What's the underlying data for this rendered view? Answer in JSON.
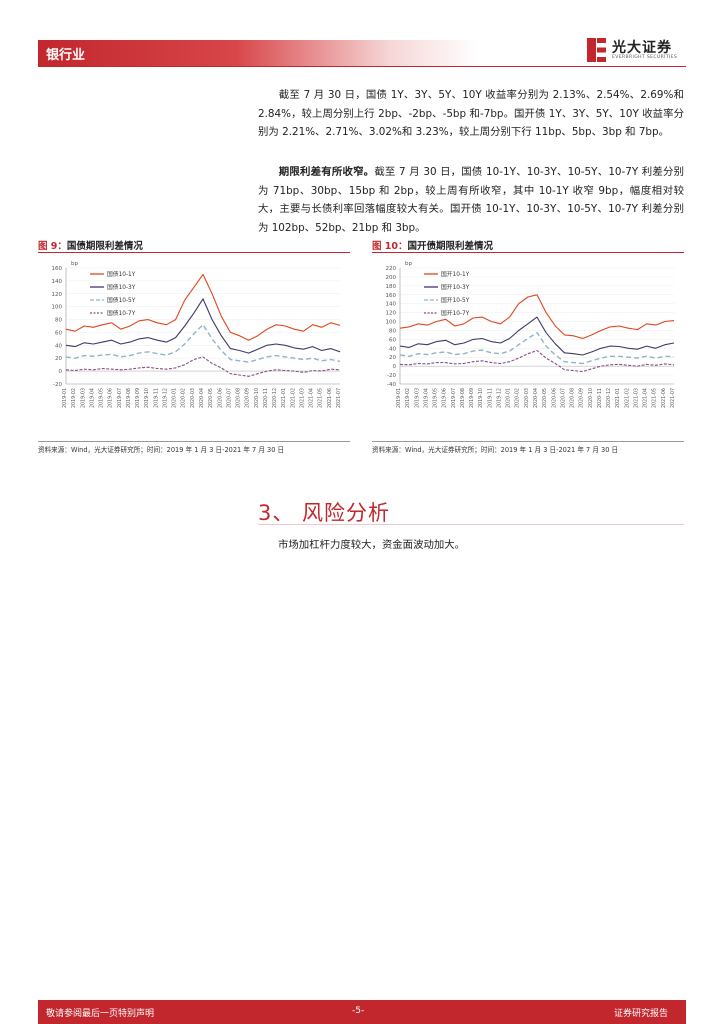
{
  "header": {
    "industry": "银行业",
    "brand_name": "光大证券",
    "brand_sub": "EVERBRIGHT SECURITIES",
    "accent_color": "#c1272d"
  },
  "paragraphs": {
    "p1": "截至 7 月 30 日，国债 1Y、3Y、5Y、10Y 收益率分别为 2.13%、2.54%、2.69%和 2.84%，较上周分别上行 2bp、-2bp、-5bp 和-7bp。国开债 1Y、3Y、5Y、10Y 收益率分别为 2.21%、2.71%、3.02%和 3.23%，较上周分别下行 11bp、5bp、3bp 和 7bp。",
    "p2_lead": "期限利差有所收窄。",
    "p2_rest": "截至 7 月 30 日，国债 10-1Y、10-3Y、10-5Y、10-7Y 利差分别为 71bp、30bp、15bp 和 2bp，较上周有所收窄，其中 10-1Y 收窄 9bp，幅度相对较大，主要与长债利率回落幅度较大有关。国开债 10-1Y、10-3Y、10-5Y、10-7Y 利差分别为 102bp、52bp、21bp 和 3bp。"
  },
  "figures": [
    {
      "label": "图 9：",
      "title": "国债期限利差情况",
      "source": "资料来源：Wind，光大证券研究所；时间：2019 年 1 月 3 日-2021 年 7 月 30 日"
    },
    {
      "label": "图 10：",
      "title": "国开债期限利差情况",
      "source": "资料来源：Wind，光大证券研究所；时间：2019 年 1 月 3 日-2021 年 7 月 30 日"
    }
  ],
  "chart_data": [
    {
      "type": "line",
      "unit_label": "bp",
      "ylim": [
        -20,
        160
      ],
      "yticks": [
        -20,
        0,
        20,
        40,
        60,
        80,
        100,
        120,
        140,
        160
      ],
      "x_tick_labels": [
        "2019-01",
        "2019-02",
        "2019-03",
        "2019-04",
        "2019-05",
        "2019-06",
        "2019-07",
        "2019-08",
        "2019-09",
        "2019-10",
        "2019-11",
        "2019-12",
        "2020-01",
        "2020-02",
        "2020-03",
        "2020-04",
        "2020-05",
        "2020-06",
        "2020-07",
        "2020-08",
        "2020-09",
        "2020-10",
        "2020-11",
        "2020-12",
        "2021-01",
        "2021-02",
        "2021-03",
        "2021-04",
        "2021-05",
        "2021-06",
        "2021-07"
      ],
      "legend_position": "top-left",
      "series": [
        {
          "name": "国债10-1Y",
          "color": "#e0461e",
          "values": [
            65,
            62,
            70,
            68,
            72,
            75,
            65,
            70,
            78,
            80,
            75,
            72,
            80,
            110,
            130,
            150,
            120,
            85,
            60,
            55,
            48,
            55,
            65,
            72,
            70,
            65,
            62,
            72,
            68,
            75,
            71
          ]
        },
        {
          "name": "国债10-3Y",
          "color": "#3d3a6b",
          "values": [
            40,
            38,
            44,
            42,
            45,
            48,
            42,
            45,
            50,
            52,
            48,
            45,
            52,
            70,
            90,
            112,
            80,
            55,
            35,
            32,
            28,
            34,
            40,
            42,
            40,
            36,
            34,
            38,
            32,
            35,
            30
          ]
        },
        {
          "name": "国债10-5Y",
          "color": "#8fb4c9",
          "values": [
            22,
            20,
            24,
            23,
            25,
            26,
            22,
            24,
            28,
            30,
            27,
            25,
            30,
            42,
            58,
            72,
            50,
            32,
            18,
            16,
            14,
            18,
            22,
            24,
            22,
            20,
            18,
            20,
            16,
            18,
            15
          ]
        },
        {
          "name": "国债10-7Y",
          "color": "#8b4b8e",
          "values": [
            2,
            1,
            3,
            2,
            4,
            3,
            2,
            3,
            5,
            6,
            4,
            3,
            5,
            10,
            18,
            22,
            12,
            5,
            -4,
            -6,
            -8,
            -4,
            0,
            2,
            1,
            0,
            -2,
            1,
            0,
            3,
            2
          ]
        }
      ]
    },
    {
      "type": "line",
      "unit_label": "bp",
      "ylim": [
        -40,
        220
      ],
      "yticks": [
        -40,
        -20,
        0,
        20,
        40,
        60,
        80,
        100,
        120,
        140,
        160,
        180,
        200,
        220
      ],
      "x_tick_labels": [
        "2019-01",
        "2019-02",
        "2019-03",
        "2019-04",
        "2019-05",
        "2019-06",
        "2019-07",
        "2019-08",
        "2019-09",
        "2019-10",
        "2019-11",
        "2019-12",
        "2020-01",
        "2020-02",
        "2020-03",
        "2020-04",
        "2020-05",
        "2020-06",
        "2020-07",
        "2020-08",
        "2020-09",
        "2020-10",
        "2020-11",
        "2020-12",
        "2021-01",
        "2021-02",
        "2021-03",
        "2021-04",
        "2021-05",
        "2021-06",
        "2021-07"
      ],
      "legend_position": "top-left",
      "series": [
        {
          "name": "国开10-1Y",
          "color": "#e0461e",
          "values": [
            85,
            88,
            95,
            92,
            100,
            105,
            90,
            95,
            108,
            110,
            100,
            95,
            110,
            140,
            155,
            160,
            120,
            90,
            70,
            68,
            62,
            70,
            80,
            88,
            90,
            85,
            82,
            95,
            92,
            100,
            102
          ]
        },
        {
          "name": "国开10-3Y",
          "color": "#3d3a6b",
          "values": [
            45,
            42,
            50,
            48,
            55,
            58,
            48,
            52,
            60,
            62,
            55,
            52,
            62,
            80,
            95,
            110,
            75,
            50,
            30,
            28,
            25,
            32,
            40,
            45,
            44,
            40,
            38,
            45,
            40,
            48,
            52
          ]
        },
        {
          "name": "国开10-5Y",
          "color": "#8fb4c9",
          "values": [
            25,
            22,
            28,
            26,
            30,
            32,
            26,
            28,
            34,
            36,
            30,
            28,
            34,
            48,
            62,
            75,
            45,
            25,
            10,
            8,
            6,
            12,
            18,
            22,
            22,
            20,
            18,
            22,
            18,
            22,
            21
          ]
        },
        {
          "name": "国开10-7Y",
          "color": "#8b4b8e",
          "values": [
            4,
            3,
            6,
            5,
            8,
            8,
            5,
            6,
            10,
            12,
            8,
            6,
            10,
            18,
            28,
            35,
            18,
            6,
            -8,
            -10,
            -12,
            -6,
            0,
            3,
            4,
            2,
            0,
            4,
            2,
            5,
            3
          ]
        }
      ]
    }
  ],
  "section": {
    "heading": "3、 风险分析",
    "body": "市场加杠杆力度较大，资金面波动加大。"
  },
  "footer": {
    "left": "敬请参阅最后一页特别声明",
    "page": "-5-",
    "right": "证券研究报告"
  }
}
